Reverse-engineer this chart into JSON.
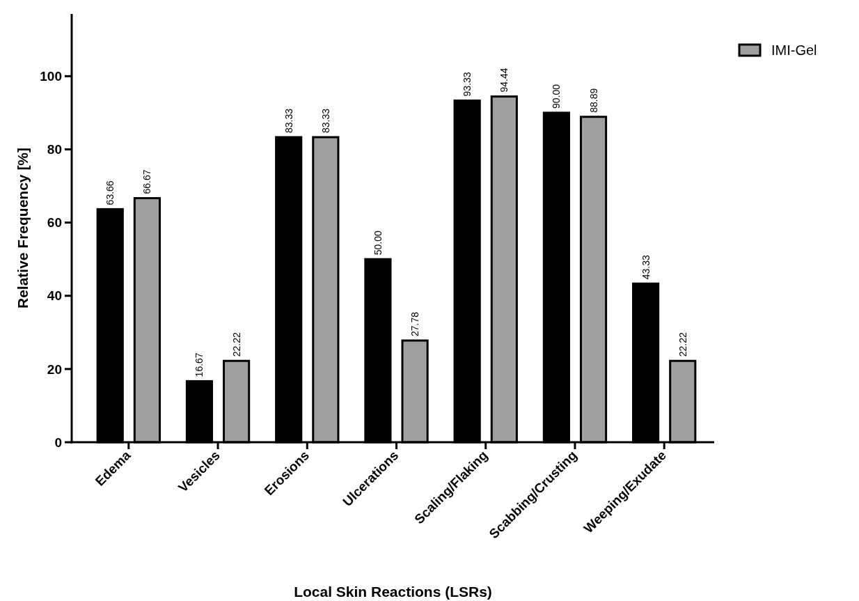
{
  "chart_data": {
    "type": "bar",
    "xlabel": "Local Skin Reactions (LSRs)",
    "ylabel": "Relative Frequency [%]",
    "categories": [
      "Edema",
      "Vesicles",
      "Erosions",
      "Ulcerations",
      "Scaling/Flaking",
      "Scabbing/Crusting",
      "Weeping/Exudate"
    ],
    "series": [
      {
        "color": "#000000",
        "values": [
          63.66,
          16.67,
          83.33,
          50.0,
          93.33,
          90.0,
          43.33
        ],
        "value_labels": [
          "63.66",
          "16.67",
          "83.33",
          "50.00",
          "93.33",
          "90.00",
          "43.33"
        ]
      },
      {
        "name": "IMI-Gel",
        "color": "#a0a0a0",
        "values": [
          66.67,
          22.22,
          83.33,
          27.78,
          94.44,
          88.89,
          22.22
        ],
        "value_labels": [
          "66.67",
          "22.22",
          "83.33",
          "27.78",
          "94.44",
          "88.89",
          "22.22"
        ]
      }
    ],
    "ylim": [
      0,
      117
    ],
    "yticks": [
      0,
      20,
      40,
      60,
      80,
      100
    ],
    "grid": false,
    "legend": "top right"
  }
}
